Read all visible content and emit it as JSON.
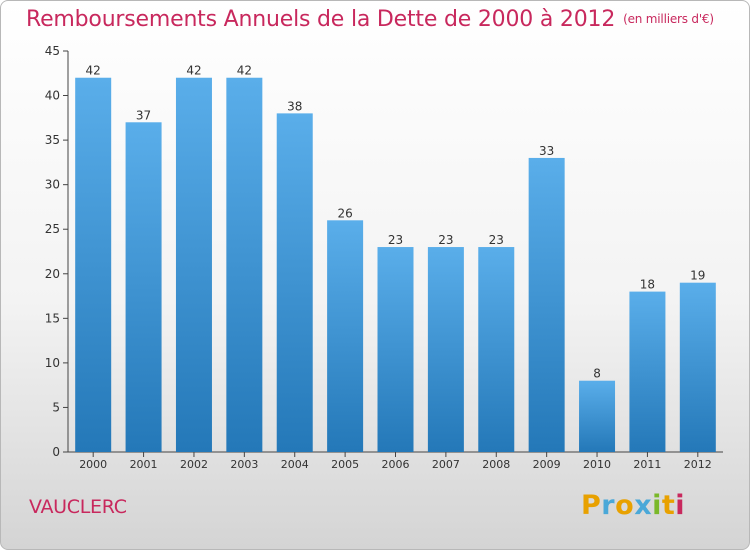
{
  "title": "Remboursements Annuels de la Dette de 2000 à 2012",
  "title_unit": "(en milliers d'€)",
  "commune": "VAUCLERC",
  "brand": {
    "letters": [
      "P",
      "r",
      "o",
      "x",
      "i",
      "t",
      "i"
    ],
    "colors": [
      "#e8a100",
      "#4aa8d8",
      "#e8a100",
      "#4aa8d8",
      "#7ab82a",
      "#e8a100",
      "#c8285d"
    ]
  },
  "colors": {
    "bar_top": "#5aaeea",
    "bar_bottom": "#2478b8",
    "title": "#c8285d"
  },
  "chart_data": {
    "type": "bar",
    "categories": [
      "2000",
      "2001",
      "2002",
      "2003",
      "2004",
      "2005",
      "2006",
      "2007",
      "2008",
      "2009",
      "2010",
      "2011",
      "2012"
    ],
    "values": [
      42,
      37,
      42,
      42,
      38,
      26,
      23,
      23,
      23,
      33,
      8,
      18,
      19
    ],
    "ylim": [
      0,
      45
    ],
    "yticks": [
      0,
      5,
      10,
      15,
      20,
      25,
      30,
      35,
      40,
      45
    ],
    "grid": false,
    "legend": "none"
  }
}
